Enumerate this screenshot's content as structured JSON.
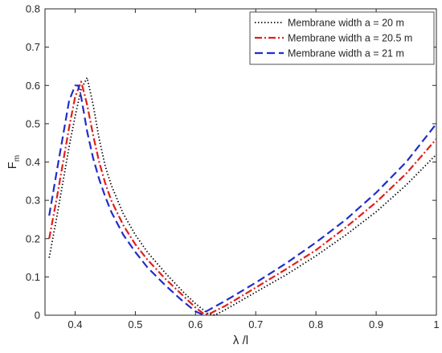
{
  "chart_data": {
    "type": "line",
    "title": "",
    "xlabel": "λ /l",
    "ylabel": "F",
    "ylabel_subscript": "m",
    "xlim": [
      0.35,
      1.0
    ],
    "ylim": [
      0,
      0.8
    ],
    "xticks": [
      0.4,
      0.5,
      0.6,
      0.7,
      0.8,
      0.9,
      1.0
    ],
    "xtick_labels": [
      "0.4",
      "0.5",
      "0.6",
      "0.7",
      "0.8",
      "0.9",
      "1"
    ],
    "yticks": [
      0,
      0.1,
      0.2,
      0.3,
      0.4,
      0.5,
      0.6,
      0.7,
      0.8
    ],
    "ytick_labels": [
      "0",
      "0.1",
      "0.2",
      "0.3",
      "0.4",
      "0.5",
      "0.6",
      "0.7",
      "0.8"
    ],
    "grid": false,
    "legend_position": "top-right",
    "series": [
      {
        "name": "Membrane width  a = 20 m",
        "color": "#000000",
        "dash": "dotted",
        "x": [
          0.357,
          0.37,
          0.38,
          0.39,
          0.4,
          0.41,
          0.42,
          0.43,
          0.44,
          0.45,
          0.46,
          0.48,
          0.5,
          0.52,
          0.55,
          0.58,
          0.6,
          0.62,
          0.632,
          0.65,
          0.7,
          0.75,
          0.8,
          0.85,
          0.9,
          0.95,
          1.0
        ],
        "y": [
          0.15,
          0.26,
          0.35,
          0.44,
          0.52,
          0.59,
          0.62,
          0.55,
          0.46,
          0.39,
          0.34,
          0.265,
          0.21,
          0.165,
          0.11,
          0.06,
          0.03,
          0.005,
          0.0,
          0.015,
          0.06,
          0.105,
          0.155,
          0.21,
          0.27,
          0.34,
          0.42
        ]
      },
      {
        "name": "Membrane width  a = 20.5 m",
        "color": "#e0201b",
        "dash": "dashdot",
        "x": [
          0.357,
          0.37,
          0.38,
          0.39,
          0.4,
          0.41,
          0.42,
          0.43,
          0.44,
          0.45,
          0.46,
          0.48,
          0.5,
          0.52,
          0.55,
          0.58,
          0.6,
          0.615,
          0.625,
          0.65,
          0.7,
          0.75,
          0.8,
          0.85,
          0.9,
          0.95,
          1.0
        ],
        "y": [
          0.2,
          0.31,
          0.4,
          0.49,
          0.57,
          0.61,
          0.55,
          0.47,
          0.4,
          0.345,
          0.3,
          0.235,
          0.185,
          0.145,
          0.095,
          0.05,
          0.02,
          0.002,
          0.005,
          0.025,
          0.072,
          0.12,
          0.17,
          0.23,
          0.295,
          0.37,
          0.46
        ]
      },
      {
        "name": "Membrane width  a = 21 m",
        "color": "#1f2ec9",
        "dash": "dashed",
        "x": [
          0.357,
          0.37,
          0.38,
          0.39,
          0.4,
          0.405,
          0.41,
          0.42,
          0.43,
          0.44,
          0.45,
          0.46,
          0.48,
          0.5,
          0.52,
          0.55,
          0.58,
          0.6,
          0.61,
          0.62,
          0.65,
          0.7,
          0.75,
          0.8,
          0.85,
          0.9,
          0.95,
          1.0
        ],
        "y": [
          0.26,
          0.38,
          0.47,
          0.56,
          0.6,
          0.6,
          0.57,
          0.48,
          0.41,
          0.355,
          0.31,
          0.27,
          0.21,
          0.165,
          0.125,
          0.078,
          0.035,
          0.01,
          0.003,
          0.012,
          0.038,
          0.085,
          0.135,
          0.19,
          0.25,
          0.32,
          0.4,
          0.5
        ]
      }
    ]
  }
}
